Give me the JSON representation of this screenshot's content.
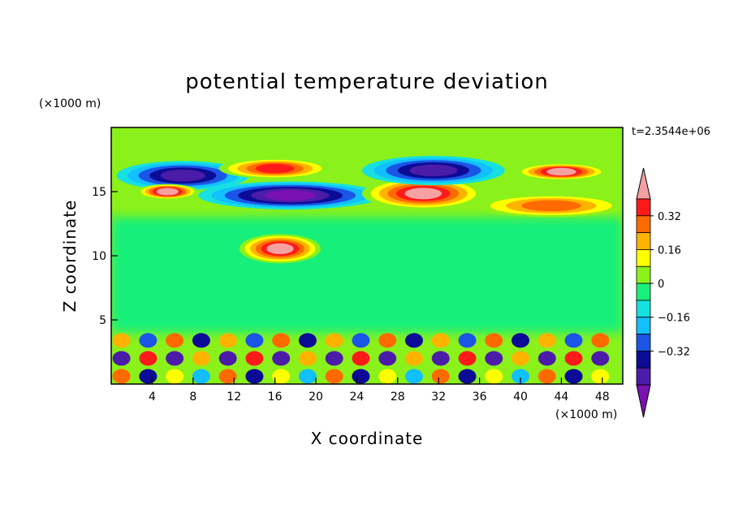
{
  "chart_data": {
    "type": "heatmap",
    "title": "potential temperature deviation",
    "xlabel": "X coordinate",
    "ylabel": "Z coordinate",
    "x_units": "(×1000 m)",
    "z_units": "(×1000 m)",
    "timestamp": "t=2.3544e+06",
    "xlim": [
      0,
      50
    ],
    "ylim": [
      0,
      20
    ],
    "x_ticks": [
      4,
      8,
      12,
      16,
      20,
      24,
      28,
      32,
      36,
      40,
      44,
      48
    ],
    "y_ticks": [
      5,
      10,
      15
    ],
    "colorbar": {
      "levels": [
        -0.48,
        -0.4,
        -0.32,
        -0.24,
        -0.16,
        -0.08,
        0,
        0.08,
        0.16,
        0.24,
        0.32,
        0.4,
        0.48
      ],
      "tick_labels": [
        "0.32",
        "0.16",
        "0",
        "−0.16",
        "−0.32"
      ],
      "tick_values": [
        0.32,
        0.16,
        0,
        -0.16,
        -0.32
      ],
      "colors": [
        "#7a11b3",
        "#4b1ca8",
        "#0b0b95",
        "#1a55e6",
        "#12bfff",
        "#16e0e0",
        "#19ef7a",
        "#8bf11a",
        "#ffff00",
        "#ffb300",
        "#ff6a00",
        "#ff1a1a",
        "#f5a1a1"
      ]
    },
    "features": [
      {
        "x": [
          1,
          13
        ],
        "z": [
          15.3,
          17.2
        ],
        "value": -0.4
      },
      {
        "x": [
          3,
          8
        ],
        "z": [
          14.6,
          15.4
        ],
        "value": 0.48
      },
      {
        "x": [
          9,
          26
        ],
        "z": [
          13.8,
          15.6
        ],
        "value": -0.48
      },
      {
        "x": [
          11,
          21
        ],
        "z": [
          16.2,
          17.4
        ],
        "value": 0.4
      },
      {
        "x": [
          25,
          36
        ],
        "z": [
          13.8,
          15.9
        ],
        "value": 0.48
      },
      {
        "x": [
          25,
          38
        ],
        "z": [
          15.7,
          17.6
        ],
        "value": -0.4
      },
      {
        "x": [
          36,
          50
        ],
        "z": [
          13.2,
          14.6
        ],
        "value": 0.32
      },
      {
        "x": [
          40,
          48
        ],
        "z": [
          16.1,
          17.0
        ],
        "value": 0.48
      },
      {
        "x": [
          13,
          20
        ],
        "z": [
          9.6,
          11.5
        ],
        "value": 0.48
      },
      {
        "x": [
          1,
          50
        ],
        "z": [
          0.0,
          3.8
        ],
        "value": 0.0
      }
    ]
  }
}
